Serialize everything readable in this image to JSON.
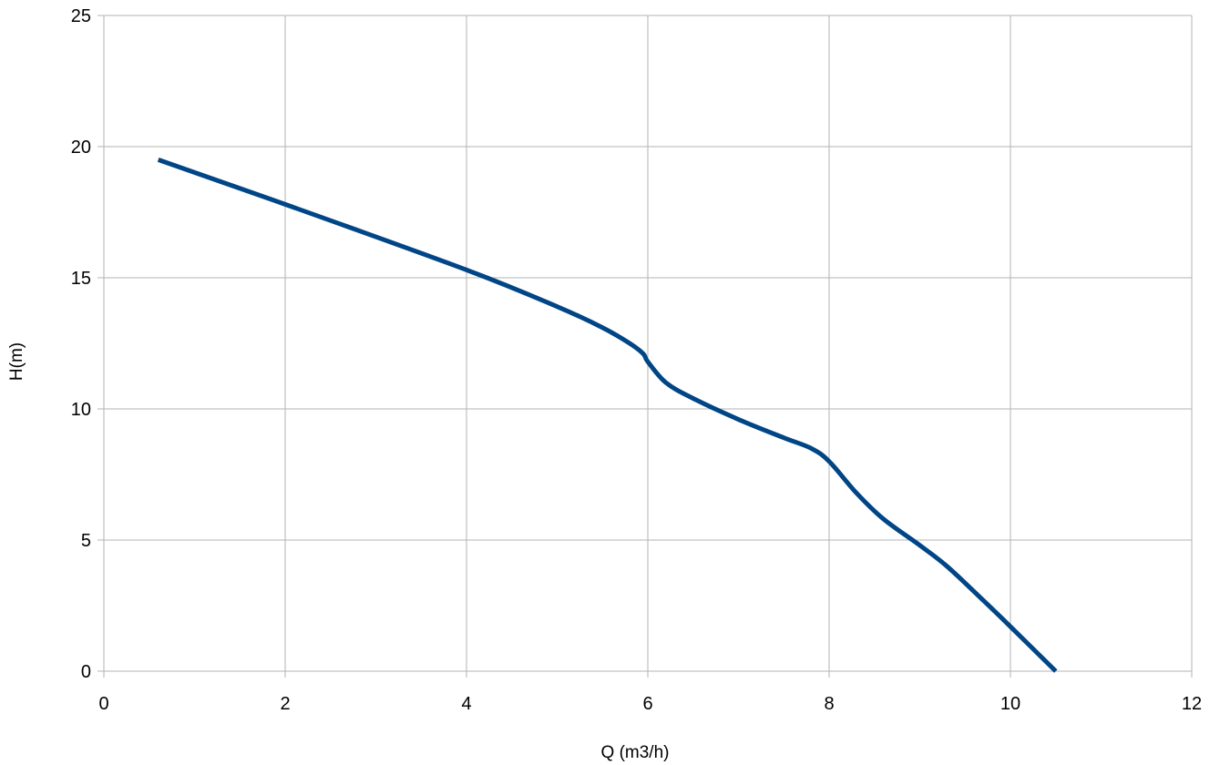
{
  "chart_data": {
    "type": "line",
    "title": "",
    "xlabel": "Q (m3/h)",
    "ylabel": "H(m)",
    "xlim": [
      0,
      12
    ],
    "ylim": [
      0,
      25
    ],
    "x_ticks": [
      "0",
      "2",
      "4",
      "6",
      "8",
      "10",
      "12"
    ],
    "y_ticks": [
      "0",
      "5",
      "10",
      "15",
      "20",
      "25"
    ],
    "grid": true,
    "legend": "none",
    "series": [
      {
        "color": "#004586",
        "x": [
          0.6,
          2,
          4,
          5,
          5.5,
          5.8,
          5.95,
          6.0,
          6.2,
          6.5,
          7,
          7.5,
          7.8,
          8.0,
          8.3,
          8.6,
          9.0,
          9.3,
          9.7,
          10.0,
          10.5
        ],
        "y": [
          19.5,
          17.8,
          15.3,
          13.9,
          13.1,
          12.5,
          12.1,
          11.8,
          11.0,
          10.4,
          9.6,
          8.9,
          8.5,
          8.0,
          6.8,
          5.8,
          4.8,
          4.0,
          2.7,
          1.7,
          0.0
        ]
      }
    ]
  }
}
